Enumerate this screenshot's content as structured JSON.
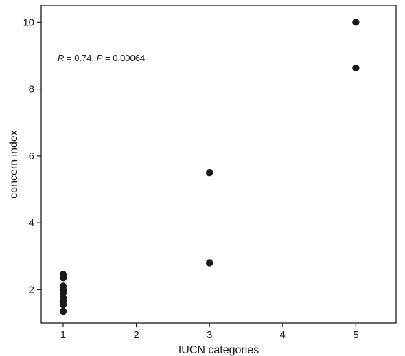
{
  "chart_data": {
    "type": "scatter",
    "title": "",
    "xlabel": "IUCN categories",
    "ylabel": "concern index",
    "xlim": [
      0.7,
      5.55
    ],
    "ylim": [
      1.0,
      10.5
    ],
    "xticks": [
      "1",
      "2",
      "3",
      "4",
      "5"
    ],
    "yticks": [
      "2",
      "4",
      "6",
      "8",
      "10"
    ],
    "grid": false,
    "legend": "none",
    "marker_color": "#1a1a1a",
    "annotation": {
      "r_symbol": "R",
      "r_text": " = 0.74, ",
      "p_symbol": "P",
      "p_text": " = 0.00064"
    },
    "points": [
      {
        "x": 1,
        "y": 2.45
      },
      {
        "x": 1,
        "y": 2.35
      },
      {
        "x": 1,
        "y": 2.1
      },
      {
        "x": 1,
        "y": 2.0
      },
      {
        "x": 1,
        "y": 1.9
      },
      {
        "x": 1,
        "y": 1.75
      },
      {
        "x": 1,
        "y": 1.65
      },
      {
        "x": 1,
        "y": 1.55
      },
      {
        "x": 1,
        "y": 1.35
      },
      {
        "x": 3,
        "y": 5.5
      },
      {
        "x": 3,
        "y": 2.8
      },
      {
        "x": 5,
        "y": 10.0
      },
      {
        "x": 5,
        "y": 8.63
      }
    ]
  }
}
